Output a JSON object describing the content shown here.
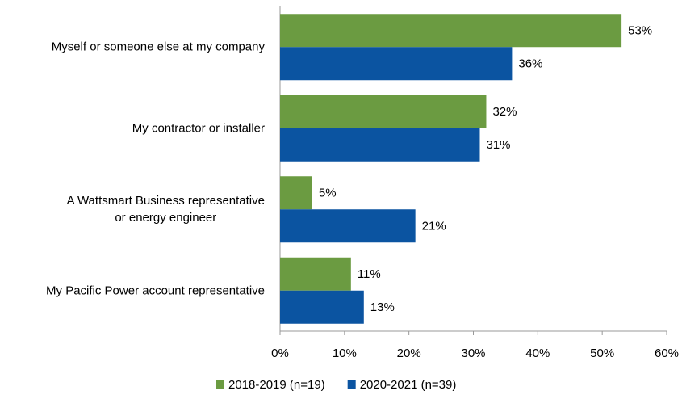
{
  "chart_data": {
    "type": "bar",
    "orientation": "horizontal",
    "categories": [
      "Myself or someone else at my company",
      "My contractor or installer",
      "A Wattsmart Business representative\nor energy engineer",
      "My Pacific Power account representative"
    ],
    "series": [
      {
        "name": "2018-2019 (n=19)",
        "color": "#6b9b41",
        "values": [
          53,
          32,
          5,
          11
        ],
        "value_labels": [
          "53%",
          "32%",
          "5%",
          "11%"
        ]
      },
      {
        "name": "2020-2021 (n=39)",
        "color": "#0b54a1",
        "values": [
          36,
          31,
          21,
          13
        ],
        "value_labels": [
          "36%",
          "31%",
          "21%",
          "13%"
        ]
      }
    ],
    "xlim": [
      0,
      60
    ],
    "xticks": [
      {
        "value": 0,
        "label": "0%"
      },
      {
        "value": 10,
        "label": "10%"
      },
      {
        "value": 20,
        "label": "20%"
      },
      {
        "value": 30,
        "label": "30%"
      },
      {
        "value": 40,
        "label": "40%"
      },
      {
        "value": 50,
        "label": "50%"
      },
      {
        "value": 60,
        "label": "60%"
      }
    ],
    "grid": false,
    "legend": "bottom"
  }
}
